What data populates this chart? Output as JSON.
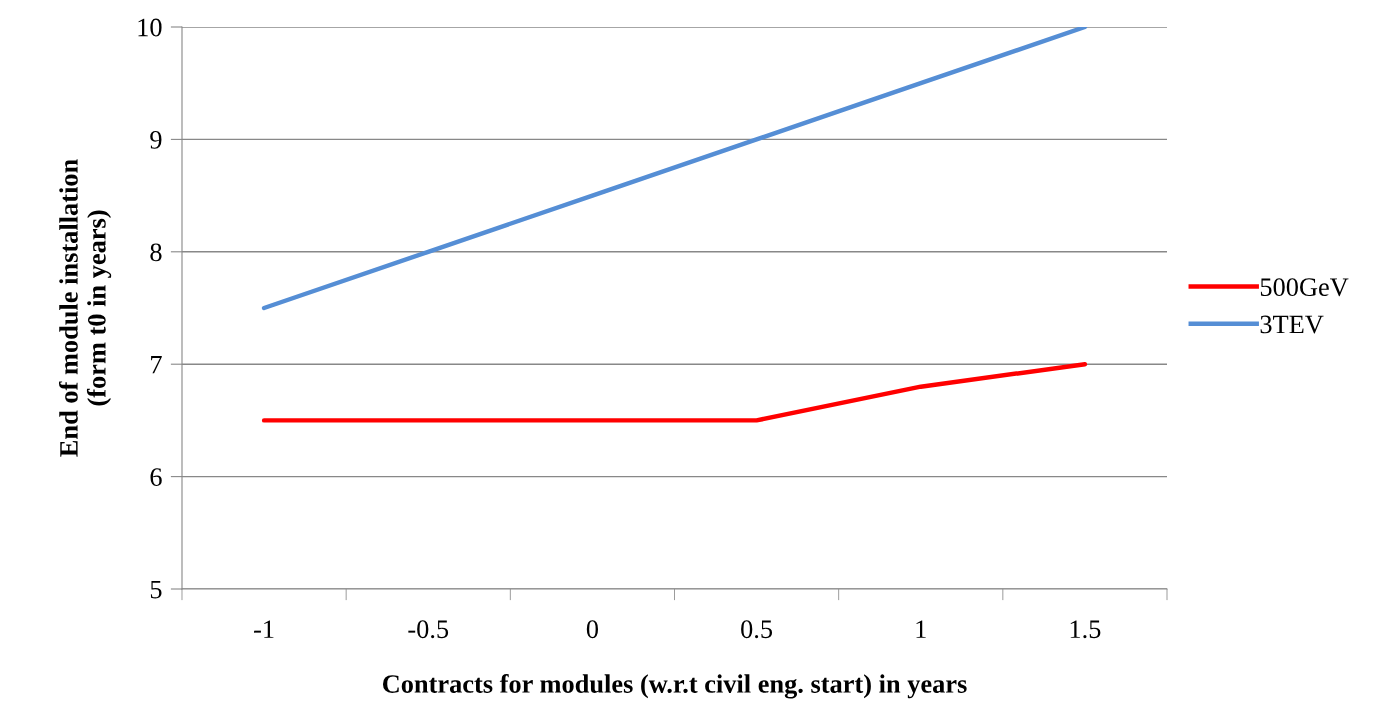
{
  "chart_data": {
    "type": "line",
    "xlabel": "Contracts for modules (w.r.t civil eng. start) in years",
    "ylabel": "End of module installation\n(form t0 in years)",
    "categories": [
      "-1",
      "-0.5",
      "0",
      "0.5",
      "1",
      "1.5"
    ],
    "series": [
      {
        "name": "500GeV",
        "color": "#ff0000",
        "values": [
          6.5,
          6.5,
          6.5,
          6.5,
          6.8,
          7.0
        ]
      },
      {
        "name": "3TEV",
        "color": "#558ed5",
        "values": [
          7.5,
          8.0,
          8.5,
          9.0,
          9.5,
          10.0
        ]
      }
    ],
    "ylim": [
      5,
      10
    ],
    "yticks": [
      5,
      6,
      7,
      8,
      9,
      10
    ],
    "grid": "y",
    "legend": "right",
    "marker": "none",
    "line_style": "solid"
  }
}
